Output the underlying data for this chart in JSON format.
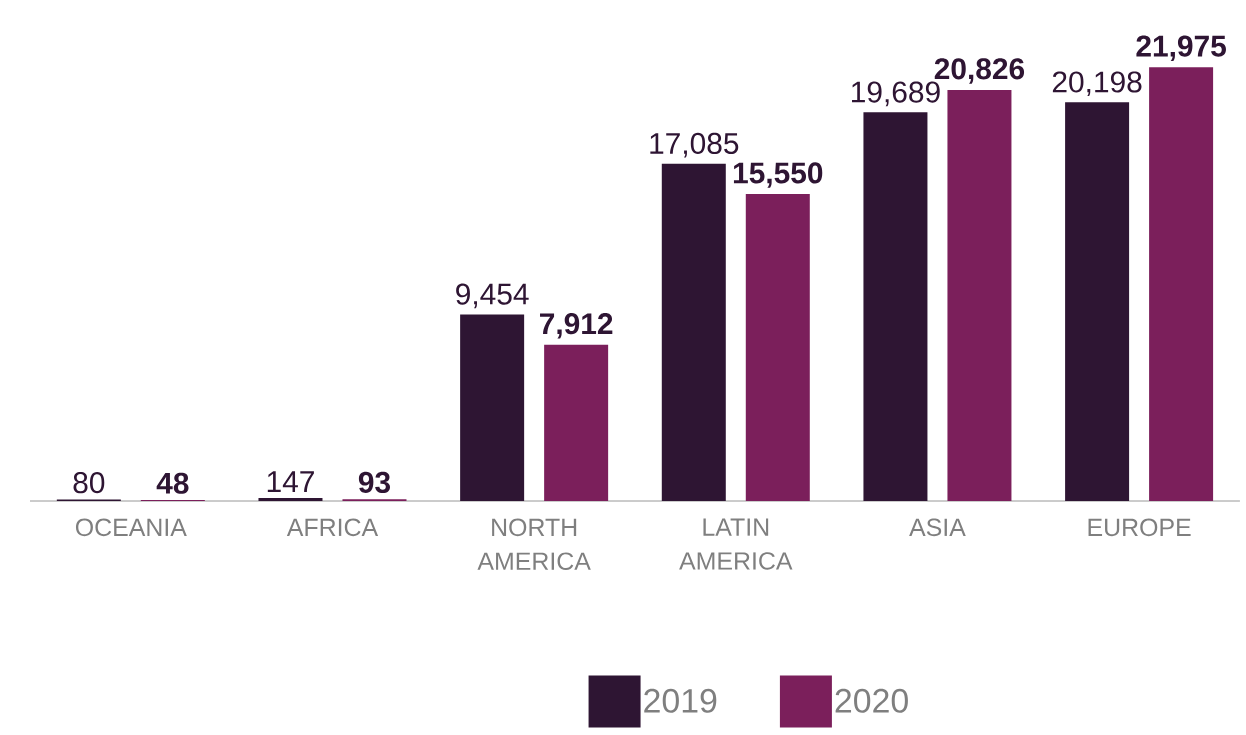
{
  "chart_data": {
    "type": "bar",
    "categories": [
      "OCEANIA",
      "AFRICA",
      "NORTH AMERICA",
      "LATIN AMERICA",
      "ASIA",
      "EUROPE"
    ],
    "series": [
      {
        "name": "2019",
        "color": "#2e1533",
        "values": [
          80,
          147,
          9454,
          17085,
          19689,
          20198
        ],
        "value_labels": [
          "80",
          "147",
          "9,454",
          "17,085",
          "19,689",
          "20,198"
        ]
      },
      {
        "name": "2020",
        "color": "#7b1f5b",
        "values": [
          48,
          93,
          7912,
          15550,
          20826,
          21975
        ],
        "value_labels": [
          "48",
          "93",
          "7,912",
          "15,550",
          "20,826",
          "21,975"
        ]
      }
    ],
    "legend": "bottom"
  }
}
